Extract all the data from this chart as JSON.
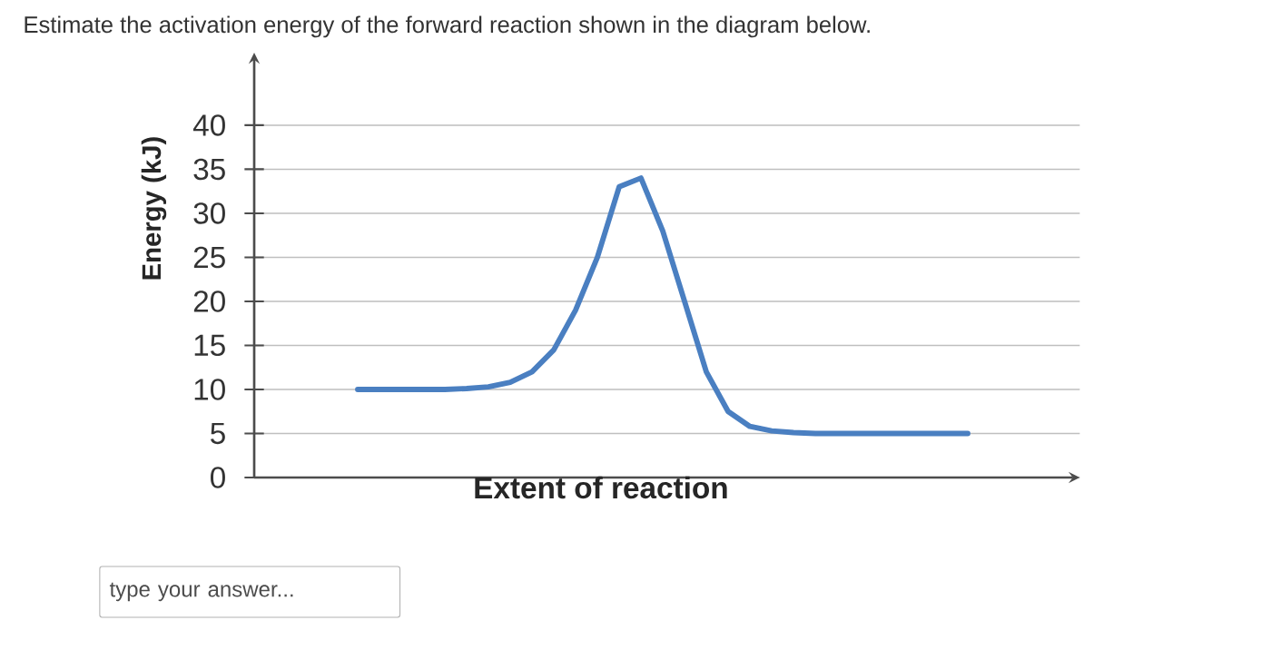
{
  "chart_data": {
    "type": "line",
    "title": "Estimate the activation energy of the forward reaction shown in the diagram below.",
    "xlabel": "Extent of reaction",
    "ylabel": "Energy (kJ)",
    "categories": [
      null,
      null,
      null,
      null,
      null,
      null,
      null,
      null,
      null,
      null,
      null,
      null,
      null,
      null,
      null,
      null,
      null,
      null,
      null,
      null,
      null,
      null,
      null,
      null,
      null,
      null,
      null,
      null,
      null
    ],
    "series": [
      {
        "color": "#4a7fc1",
        "values": [
          10,
          10,
          10,
          10,
          10,
          10.1,
          10.3,
          10.8,
          12,
          14.5,
          19,
          25,
          33,
          34,
          28,
          20,
          12,
          7.5,
          5.8,
          5.3,
          5.1,
          5,
          5,
          5,
          5,
          5,
          5,
          5,
          5
        ]
      }
    ],
    "ylim": [
      0,
      47
    ],
    "yticks": [
      0,
      5,
      10,
      15,
      20,
      25,
      30,
      35,
      40
    ],
    "grid": "y",
    "annotations": [
      "type your answer..."
    ]
  }
}
